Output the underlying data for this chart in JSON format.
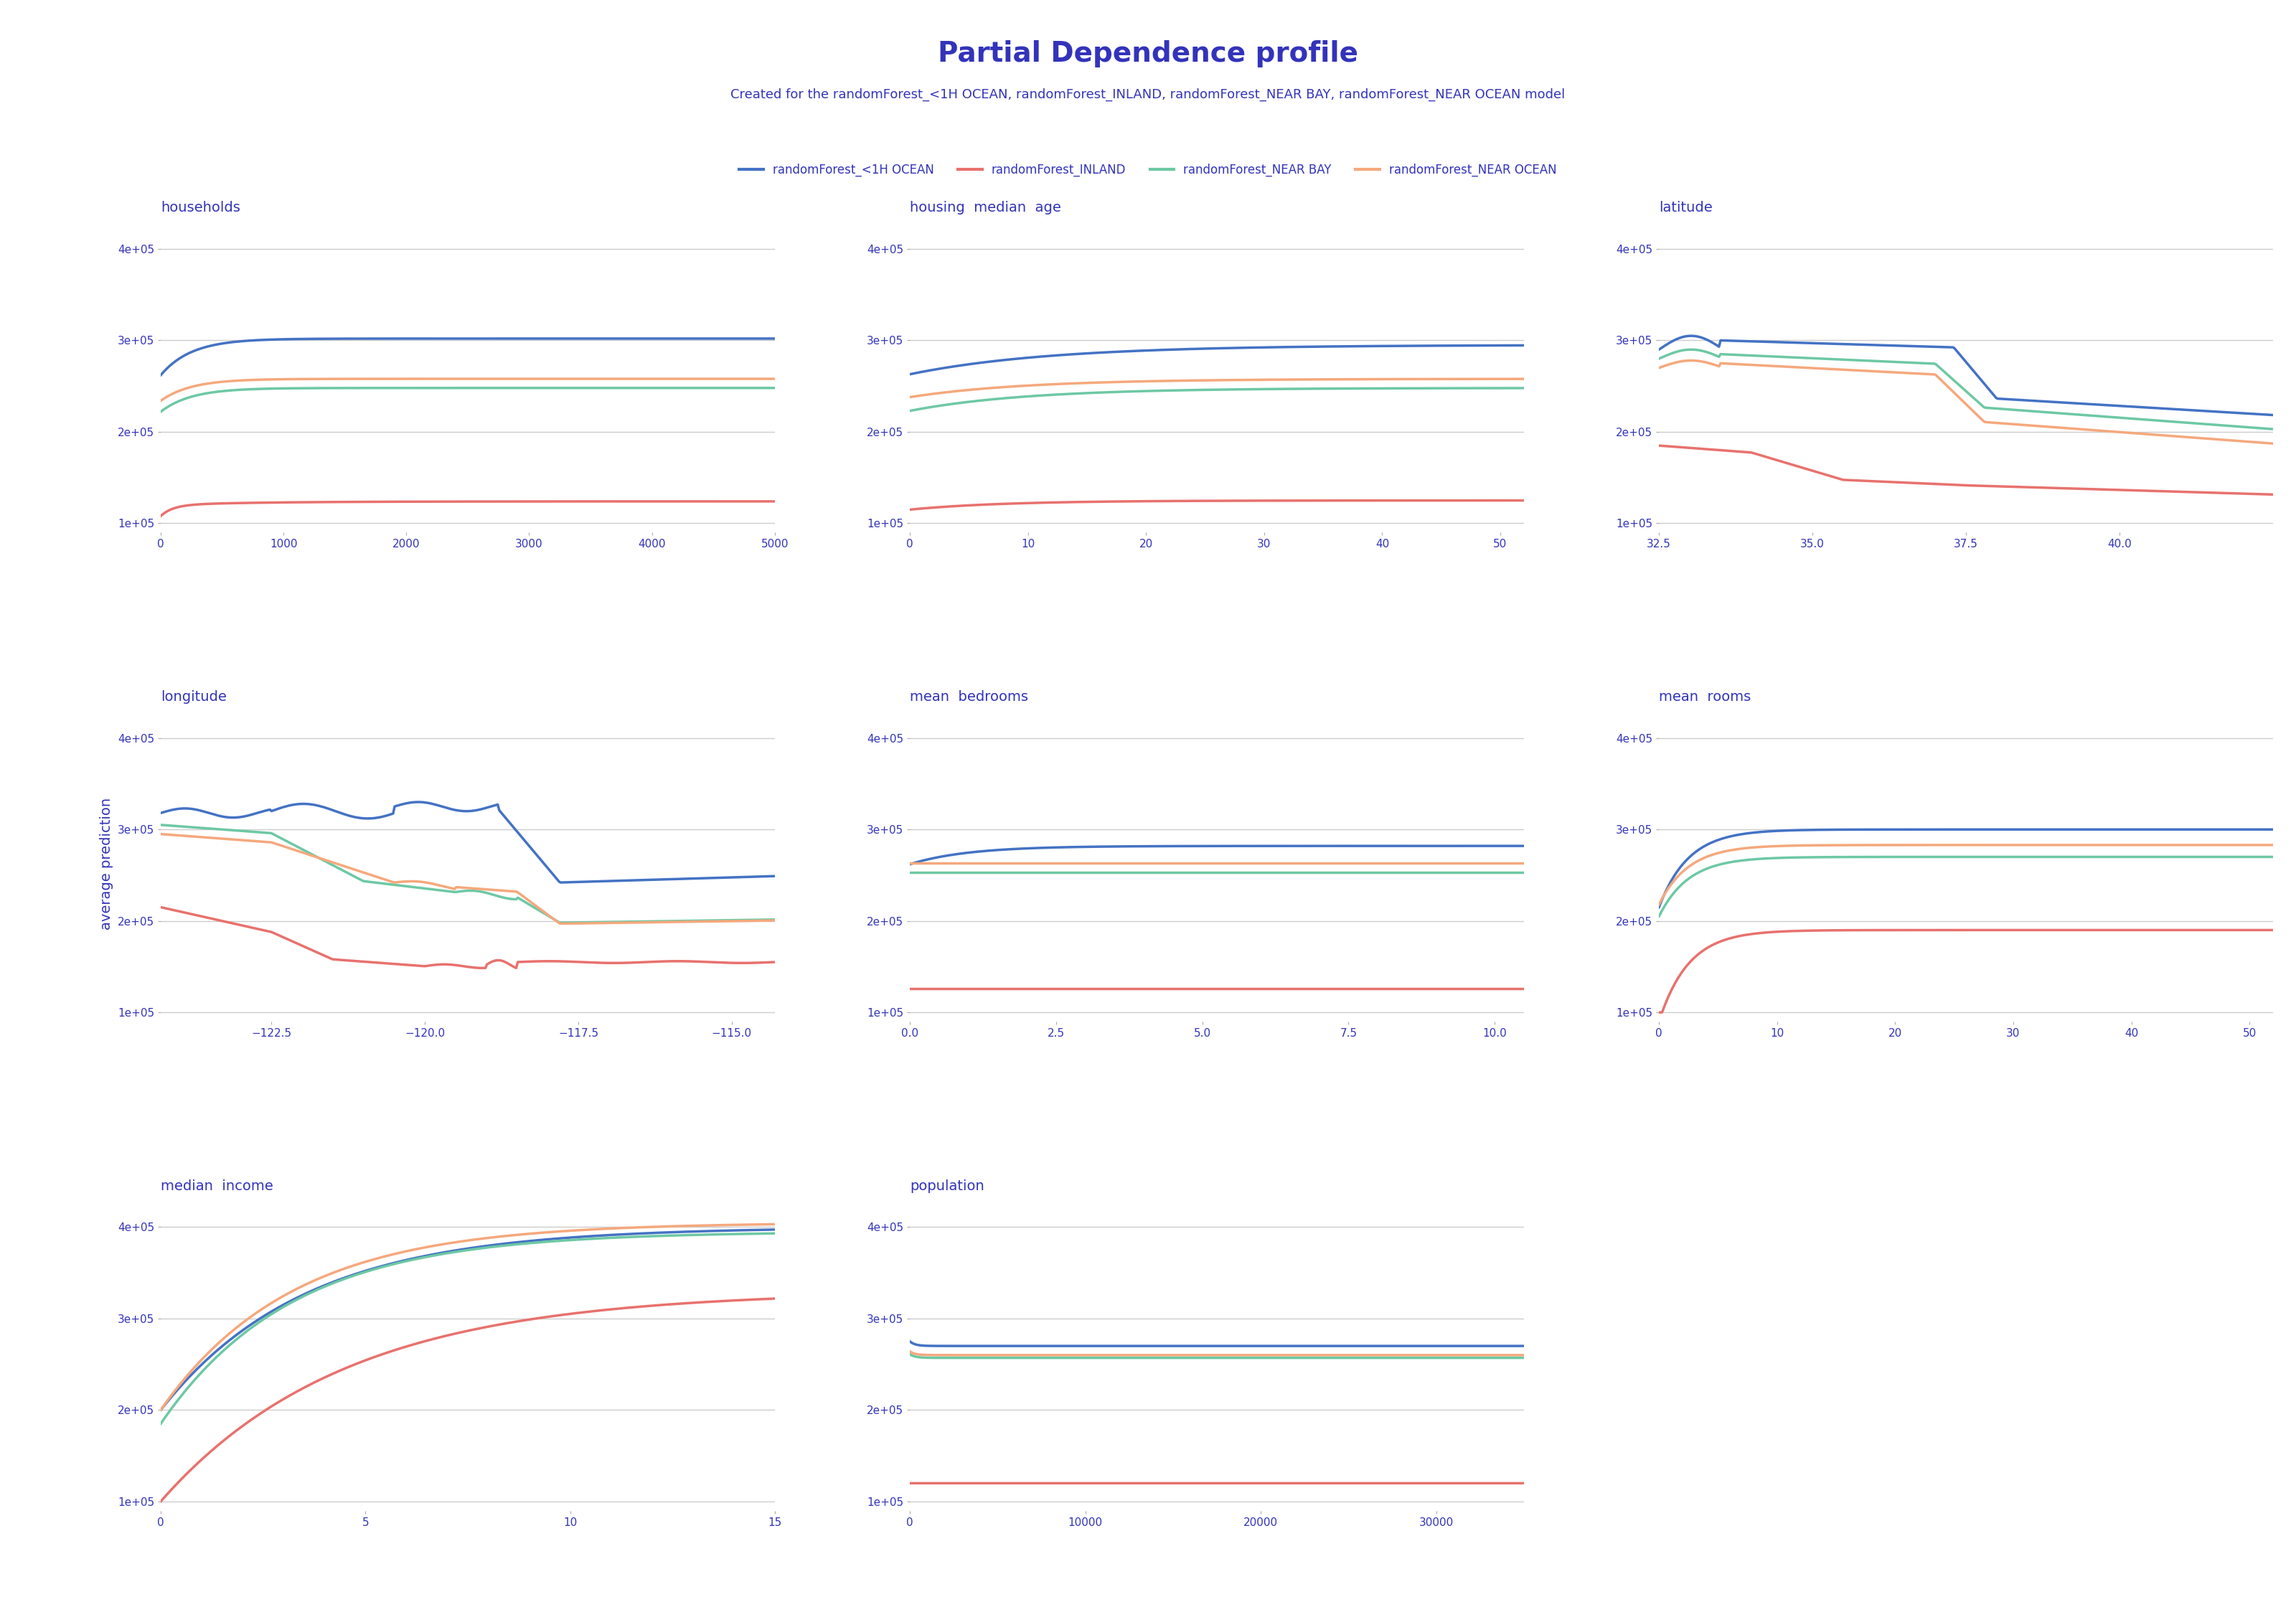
{
  "title": "Partial Dependence profile",
  "subtitle": "Created for the randomForest_<1H OCEAN, randomForest_INLAND, randomForest_NEAR BAY, randomForest_NEAR OCEAN model",
  "title_color": "#3333BB",
  "subtitle_color": "#3333BB",
  "ylabel": "average prediction",
  "models": [
    "randomForest_<1H OCEAN",
    "randomForest_INLAND",
    "randomForest_NEAR BAY",
    "randomForest_NEAR OCEAN"
  ],
  "colors": [
    "#4472C4",
    "#E8716D",
    "#6DC8A4",
    "#F5A87C"
  ],
  "background_color": "#FFFFFF",
  "grid_color": "#CCCCCC",
  "text_color": "#3333BB",
  "title_fontsize": 28,
  "subtitle_fontsize": 13,
  "label_fontsize": 14,
  "tick_fontsize": 11
}
